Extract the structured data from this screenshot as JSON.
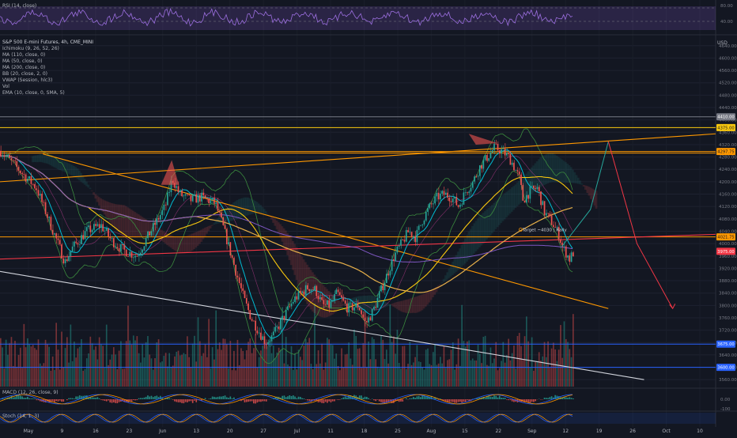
{
  "rsi": {
    "label": "RSI (14, close)",
    "ticks": [
      "80.00",
      "40.00"
    ]
  },
  "main": {
    "title": "S&P 500 E-mini Futures, 4h, CME_MINI",
    "currency": "USD",
    "indicators": [
      "Ichimoku (9, 26, 52, 26)",
      "MA (110, close, 0)",
      "MA (50, close, 0)",
      "MA (200, close, 0)",
      "BB (20, close, 2, 0)",
      "VWAP (Session, hlc3)",
      "Vol",
      "EMA (10, close, 0, SMA, 5)"
    ],
    "annotation": "Target ~4030 | Rally",
    "price_badges": [
      {
        "text": "4410.00",
        "value": 4410,
        "color": "#787b86"
      },
      {
        "text": "4375.00",
        "value": 4375,
        "color": "#f9c80e"
      },
      {
        "text": "4297.75",
        "value": 4297.75,
        "color": "#ff9800"
      },
      {
        "text": "4021.75",
        "value": 4021.75,
        "color": "#ff9800"
      },
      {
        "text": "3975.00",
        "value": 3975,
        "color": "#f23645"
      },
      {
        "text": "3675.00",
        "value": 3675,
        "color": "#2962ff"
      },
      {
        "text": "3600.00",
        "value": 3600,
        "color": "#2962ff"
      }
    ]
  },
  "macd": {
    "label": "MACD (12, 26, close, 9)",
    "ticks": [
      "0.00",
      "-100"
    ]
  },
  "stoch": {
    "label": "Stoch (14, 1, 3)"
  },
  "colors": {
    "up": "#26a69a",
    "down": "#ef5350",
    "orange": "#ff9800",
    "yellow": "#f9c80e",
    "blue": "#2962ff",
    "cyan": "#00bcd4"
  },
  "chart_data": {
    "type": "candlestick",
    "title": "S&P 500 E-mini Futures, 4h, CME_MINI",
    "y_axis": {
      "unit": "USD",
      "ticks": [
        4640,
        4600,
        4560,
        4520,
        4480,
        4440,
        4400,
        4360,
        4320,
        4280,
        4240,
        4200,
        4160,
        4120,
        4080,
        4040,
        4000,
        3960,
        3920,
        3880,
        3840,
        3800,
        3760,
        3720,
        3680,
        3640,
        3600,
        3560
      ],
      "range": [
        3535,
        4665
      ]
    },
    "x_axis": {
      "ticks": [
        "May",
        "9",
        "16",
        "23",
        "Jun",
        "13",
        "20",
        "27",
        "Jul",
        "11",
        "18",
        "25",
        "Aug",
        "15",
        "22",
        "Sep",
        "12",
        "19",
        "26",
        "Oct",
        "10"
      ]
    },
    "price_path": [
      [
        0,
        4300
      ],
      [
        5,
        4240
      ],
      [
        10,
        4180
      ],
      [
        14,
        4060
      ],
      [
        18,
        3940
      ],
      [
        20,
        3985
      ],
      [
        24,
        4040
      ],
      [
        28,
        4060
      ],
      [
        31,
        4010
      ],
      [
        34,
        3980
      ],
      [
        38,
        3960
      ],
      [
        42,
        4040
      ],
      [
        46,
        4120
      ],
      [
        48,
        4210
      ],
      [
        50,
        4160
      ],
      [
        53,
        4140
      ],
      [
        56,
        4150
      ],
      [
        60,
        4130
      ],
      [
        62,
        4060
      ],
      [
        64,
        3980
      ],
      [
        66,
        3900
      ],
      [
        68,
        3820
      ],
      [
        70,
        3760
      ],
      [
        72,
        3720
      ],
      [
        74,
        3680
      ],
      [
        76,
        3700
      ],
      [
        78,
        3740
      ],
      [
        80,
        3780
      ],
      [
        82,
        3820
      ],
      [
        84,
        3840
      ],
      [
        86,
        3860
      ],
      [
        88,
        3850
      ],
      [
        90,
        3800
      ],
      [
        92,
        3800
      ],
      [
        94,
        3840
      ],
      [
        97,
        3790
      ],
      [
        100,
        3800
      ],
      [
        102,
        3740
      ],
      [
        104,
        3780
      ],
      [
        106,
        3840
      ],
      [
        108,
        3900
      ],
      [
        110,
        3960
      ],
      [
        112,
        4000
      ],
      [
        114,
        4040
      ],
      [
        116,
        4020
      ],
      [
        118,
        4080
      ],
      [
        120,
        4120
      ],
      [
        122,
        4150
      ],
      [
        124,
        4160
      ],
      [
        126,
        4150
      ],
      [
        128,
        4120
      ],
      [
        130,
        4170
      ],
      [
        132,
        4200
      ],
      [
        134,
        4250
      ],
      [
        136,
        4280
      ],
      [
        138,
        4310
      ],
      [
        140,
        4300
      ],
      [
        142,
        4280
      ],
      [
        143,
        4260
      ],
      [
        145,
        4210
      ],
      [
        146,
        4140
      ],
      [
        148,
        4170
      ],
      [
        150,
        4180
      ],
      [
        152,
        4100
      ],
      [
        154,
        4070
      ],
      [
        156,
        4030
      ],
      [
        157,
        3990
      ],
      [
        159,
        3950
      ],
      [
        160,
        3970
      ]
    ],
    "path_x_span": [
      0,
      164
    ],
    "levels": [
      {
        "label": "4410.00",
        "value": 4410,
        "color": "#787b86",
        "style": "solid"
      },
      {
        "label": "4375.00",
        "value": 4375,
        "color": "#f9c80e",
        "style": "solid"
      },
      {
        "label": "4297.75",
        "value": 4297.75,
        "color": "#ff9800",
        "style": "double"
      },
      {
        "label": "4021.75",
        "value": 4021.75,
        "color": "#ff9800",
        "style": "solid"
      },
      {
        "label": "3675.00",
        "value": 3675,
        "color": "#2962ff",
        "style": "solid"
      },
      {
        "label": "3600.00",
        "value": 3600,
        "color": "#2962ff",
        "style": "solid"
      }
    ],
    "trendlines": [
      {
        "color": "#ff9800",
        "from": [
          0,
          4200
        ],
        "to": [
          200,
          4355
        ]
      },
      {
        "color": "#ff9800",
        "from": [
          12,
          4290
        ],
        "to": [
          170,
          3790
        ]
      },
      {
        "color": "#f23645",
        "from": [
          0,
          3950
        ],
        "to": [
          200,
          4030
        ]
      },
      {
        "color": "#d1d4dc",
        "from": [
          0,
          3910
        ],
        "to": [
          180,
          3560
        ]
      }
    ],
    "projection": [
      {
        "color": "#26a69a",
        "points": [
          [
            157,
            3990
          ],
          [
            165,
            4110
          ],
          [
            170,
            4330
          ]
        ]
      },
      {
        "color": "#f23645",
        "points": [
          [
            170,
            4330
          ],
          [
            178,
            4000
          ],
          [
            188,
            3790
          ]
        ]
      }
    ],
    "grid": true,
    "legend": "top-left"
  }
}
